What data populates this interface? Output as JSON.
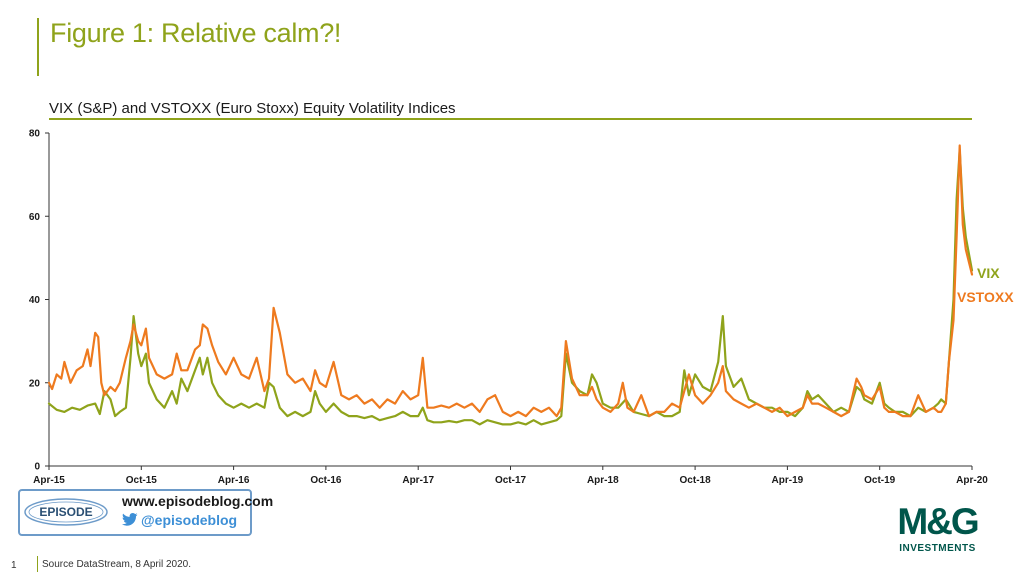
{
  "slide": {
    "title": "Figure 1: Relative calm?!",
    "page_number": "1",
    "source": "Source DataStream, 8 April 2020."
  },
  "branding": {
    "episode_logo_text": "EPISODE",
    "episode_url": "www.episodeblog.com",
    "episode_handle": "@episodeblog",
    "mg_logo_text": "M&G",
    "mg_logo_sub": "INVESTMENTS"
  },
  "colors": {
    "accent": "#8fa31b",
    "vix": "#8fa31b",
    "vstoxx": "#ee7a1f",
    "mg_green": "#00564b",
    "episode_blue": "#6d9bc9"
  },
  "chart_data": {
    "type": "line",
    "title": "VIX (S&P) and VSTOXX (Euro Stoxx) Equity Volatility Indices",
    "xlabel": "",
    "ylabel": "",
    "ylim": [
      0,
      80
    ],
    "yticks": [
      "0",
      "20",
      "40",
      "60",
      "80"
    ],
    "x_ticks": [
      "Apr-15",
      "Oct-15",
      "Apr-16",
      "Oct-16",
      "Apr-17",
      "Oct-17",
      "Apr-18",
      "Oct-18",
      "Apr-19",
      "Oct-19",
      "Apr-20"
    ],
    "x_range_months": [
      0,
      60
    ],
    "grid": false,
    "series": [
      {
        "name": "VIX",
        "color": "#8fa31b",
        "points": [
          [
            0,
            15
          ],
          [
            0.5,
            13.5
          ],
          [
            1,
            13
          ],
          [
            1.5,
            14
          ],
          [
            2,
            13.5
          ],
          [
            2.5,
            14.5
          ],
          [
            3,
            15
          ],
          [
            3.3,
            12.5
          ],
          [
            3.6,
            18
          ],
          [
            4,
            16
          ],
          [
            4.3,
            12
          ],
          [
            4.6,
            13
          ],
          [
            5,
            14
          ],
          [
            5.3,
            26
          ],
          [
            5.5,
            36
          ],
          [
            5.8,
            27
          ],
          [
            6,
            24
          ],
          [
            6.3,
            27
          ],
          [
            6.5,
            20
          ],
          [
            7,
            16
          ],
          [
            7.5,
            14
          ],
          [
            8,
            18
          ],
          [
            8.3,
            15
          ],
          [
            8.6,
            21
          ],
          [
            9,
            18
          ],
          [
            9.5,
            23
          ],
          [
            9.8,
            26
          ],
          [
            10,
            22
          ],
          [
            10.3,
            26
          ],
          [
            10.6,
            20
          ],
          [
            11,
            17
          ],
          [
            11.5,
            15
          ],
          [
            12,
            14
          ],
          [
            12.5,
            15
          ],
          [
            13,
            14
          ],
          [
            13.5,
            15
          ],
          [
            14,
            14
          ],
          [
            14.3,
            20
          ],
          [
            14.6,
            19
          ],
          [
            15,
            14
          ],
          [
            15.5,
            12
          ],
          [
            16,
            13
          ],
          [
            16.5,
            12
          ],
          [
            17,
            13
          ],
          [
            17.3,
            18
          ],
          [
            17.6,
            15
          ],
          [
            18,
            13
          ],
          [
            18.5,
            15
          ],
          [
            19,
            13
          ],
          [
            19.5,
            12
          ],
          [
            20,
            12
          ],
          [
            20.5,
            11.5
          ],
          [
            21,
            12
          ],
          [
            21.5,
            11
          ],
          [
            22,
            11.5
          ],
          [
            22.5,
            12
          ],
          [
            23,
            13
          ],
          [
            23.5,
            12
          ],
          [
            24,
            12
          ],
          [
            24.3,
            14
          ],
          [
            24.6,
            11
          ],
          [
            25,
            10.5
          ],
          [
            25.5,
            10.5
          ],
          [
            26,
            10.8
          ],
          [
            26.5,
            10.5
          ],
          [
            27,
            11
          ],
          [
            27.5,
            11
          ],
          [
            28,
            10
          ],
          [
            28.5,
            11
          ],
          [
            29,
            10.5
          ],
          [
            29.5,
            10
          ],
          [
            30,
            10
          ],
          [
            30.5,
            10.5
          ],
          [
            31,
            10
          ],
          [
            31.5,
            11
          ],
          [
            32,
            10
          ],
          [
            32.5,
            10.5
          ],
          [
            33,
            11
          ],
          [
            33.3,
            12
          ],
          [
            33.6,
            27
          ],
          [
            34,
            20
          ],
          [
            34.5,
            18
          ],
          [
            35,
            17
          ],
          [
            35.3,
            22
          ],
          [
            35.6,
            20
          ],
          [
            36,
            15
          ],
          [
            36.5,
            14
          ],
          [
            37,
            14
          ],
          [
            37.5,
            16
          ],
          [
            38,
            13
          ],
          [
            38.5,
            12.5
          ],
          [
            39,
            12
          ],
          [
            39.5,
            13
          ],
          [
            40,
            12
          ],
          [
            40.5,
            12
          ],
          [
            41,
            13
          ],
          [
            41.3,
            23
          ],
          [
            41.6,
            17
          ],
          [
            42,
            22
          ],
          [
            42.5,
            19
          ],
          [
            43,
            18
          ],
          [
            43.5,
            25
          ],
          [
            43.8,
            36
          ],
          [
            44,
            24
          ],
          [
            44.5,
            19
          ],
          [
            45,
            21
          ],
          [
            45.5,
            16
          ],
          [
            46,
            15
          ],
          [
            46.5,
            14
          ],
          [
            47,
            14
          ],
          [
            47.5,
            13
          ],
          [
            48,
            13
          ],
          [
            48.5,
            12
          ],
          [
            49,
            14
          ],
          [
            49.3,
            18
          ],
          [
            49.6,
            16
          ],
          [
            50,
            17
          ],
          [
            50.5,
            15
          ],
          [
            51,
            13
          ],
          [
            51.5,
            14
          ],
          [
            52,
            13
          ],
          [
            52.5,
            19
          ],
          [
            52.8,
            18
          ],
          [
            53,
            16
          ],
          [
            53.5,
            15
          ],
          [
            54,
            20
          ],
          [
            54.3,
            15
          ],
          [
            54.6,
            14
          ],
          [
            55,
            13
          ],
          [
            55.5,
            13
          ],
          [
            56,
            12
          ],
          [
            56.5,
            14
          ],
          [
            57,
            13
          ],
          [
            57.5,
            14
          ],
          [
            57.8,
            15
          ],
          [
            58,
            16
          ],
          [
            58.3,
            15
          ],
          [
            58.5,
            25
          ],
          [
            58.8,
            40
          ],
          [
            59,
            64
          ],
          [
            59.2,
            76
          ],
          [
            59.4,
            62
          ],
          [
            59.6,
            55
          ],
          [
            60,
            47
          ]
        ]
      },
      {
        "name": "VSTOXX",
        "color": "#ee7a1f",
        "points": [
          [
            0,
            20
          ],
          [
            0.2,
            18.5
          ],
          [
            0.5,
            22
          ],
          [
            0.8,
            21
          ],
          [
            1,
            25
          ],
          [
            1.4,
            20
          ],
          [
            1.8,
            23
          ],
          [
            2.2,
            24
          ],
          [
            2.5,
            28
          ],
          [
            2.7,
            24
          ],
          [
            3,
            32
          ],
          [
            3.2,
            31
          ],
          [
            3.4,
            20
          ],
          [
            3.6,
            17
          ],
          [
            4,
            19
          ],
          [
            4.3,
            18
          ],
          [
            4.6,
            20
          ],
          [
            5,
            26
          ],
          [
            5.3,
            30
          ],
          [
            5.5,
            34
          ],
          [
            5.8,
            30
          ],
          [
            6,
            29
          ],
          [
            6.3,
            33
          ],
          [
            6.5,
            26
          ],
          [
            7,
            22
          ],
          [
            7.5,
            21
          ],
          [
            8,
            22
          ],
          [
            8.3,
            27
          ],
          [
            8.6,
            23
          ],
          [
            9,
            23
          ],
          [
            9.5,
            28
          ],
          [
            9.8,
            29
          ],
          [
            10,
            34
          ],
          [
            10.3,
            33
          ],
          [
            10.6,
            29
          ],
          [
            11,
            25
          ],
          [
            11.5,
            22
          ],
          [
            12,
            26
          ],
          [
            12.5,
            22
          ],
          [
            13,
            21
          ],
          [
            13.5,
            26
          ],
          [
            14,
            18
          ],
          [
            14.3,
            21
          ],
          [
            14.6,
            38
          ],
          [
            15,
            32
          ],
          [
            15.5,
            22
          ],
          [
            16,
            20
          ],
          [
            16.5,
            21
          ],
          [
            17,
            18
          ],
          [
            17.3,
            23
          ],
          [
            17.6,
            20
          ],
          [
            18,
            19
          ],
          [
            18.5,
            25
          ],
          [
            19,
            17
          ],
          [
            19.5,
            16
          ],
          [
            20,
            17
          ],
          [
            20.5,
            15
          ],
          [
            21,
            16
          ],
          [
            21.5,
            14
          ],
          [
            22,
            16
          ],
          [
            22.5,
            15
          ],
          [
            23,
            18
          ],
          [
            23.5,
            16
          ],
          [
            24,
            17
          ],
          [
            24.3,
            26
          ],
          [
            24.6,
            14
          ],
          [
            25,
            14
          ],
          [
            25.5,
            14.5
          ],
          [
            26,
            14
          ],
          [
            26.5,
            15
          ],
          [
            27,
            14
          ],
          [
            27.5,
            15
          ],
          [
            28,
            13
          ],
          [
            28.5,
            16
          ],
          [
            29,
            17
          ],
          [
            29.5,
            13
          ],
          [
            30,
            12
          ],
          [
            30.5,
            13
          ],
          [
            31,
            12
          ],
          [
            31.5,
            14
          ],
          [
            32,
            13
          ],
          [
            32.5,
            14
          ],
          [
            33,
            12
          ],
          [
            33.3,
            14
          ],
          [
            33.6,
            30
          ],
          [
            34,
            21
          ],
          [
            34.5,
            17
          ],
          [
            35,
            17
          ],
          [
            35.3,
            19
          ],
          [
            35.6,
            16
          ],
          [
            36,
            14
          ],
          [
            36.5,
            13
          ],
          [
            37,
            15
          ],
          [
            37.3,
            20
          ],
          [
            37.6,
            14
          ],
          [
            38,
            13
          ],
          [
            38.5,
            17
          ],
          [
            39,
            12
          ],
          [
            39.5,
            13
          ],
          [
            40,
            13
          ],
          [
            40.5,
            15
          ],
          [
            41,
            14
          ],
          [
            41.3,
            18
          ],
          [
            41.6,
            22
          ],
          [
            42,
            17
          ],
          [
            42.5,
            15
          ],
          [
            43,
            17
          ],
          [
            43.5,
            20
          ],
          [
            43.8,
            24
          ],
          [
            44,
            18
          ],
          [
            44.5,
            16
          ],
          [
            45,
            15
          ],
          [
            45.5,
            14
          ],
          [
            46,
            15
          ],
          [
            46.5,
            14
          ],
          [
            47,
            13
          ],
          [
            47.5,
            14
          ],
          [
            48,
            12
          ],
          [
            48.5,
            13
          ],
          [
            49,
            14
          ],
          [
            49.3,
            17
          ],
          [
            49.6,
            15
          ],
          [
            50,
            15
          ],
          [
            50.5,
            14
          ],
          [
            51,
            13
          ],
          [
            51.5,
            12
          ],
          [
            52,
            13
          ],
          [
            52.5,
            21
          ],
          [
            52.8,
            19
          ],
          [
            53,
            17
          ],
          [
            53.5,
            16
          ],
          [
            54,
            19
          ],
          [
            54.3,
            14
          ],
          [
            54.6,
            13
          ],
          [
            55,
            13
          ],
          [
            55.5,
            12
          ],
          [
            56,
            12
          ],
          [
            56.5,
            17
          ],
          [
            57,
            13
          ],
          [
            57.5,
            14
          ],
          [
            57.8,
            13
          ],
          [
            58,
            13
          ],
          [
            58.3,
            15
          ],
          [
            58.5,
            25
          ],
          [
            58.8,
            35
          ],
          [
            59,
            55
          ],
          [
            59.2,
            77
          ],
          [
            59.4,
            58
          ],
          [
            59.6,
            52
          ],
          [
            60,
            46
          ]
        ]
      }
    ],
    "series_labels": [
      {
        "name": "VIX",
        "text": "VIX"
      },
      {
        "name": "VSTOXX",
        "text": "VSTOXX"
      }
    ]
  }
}
